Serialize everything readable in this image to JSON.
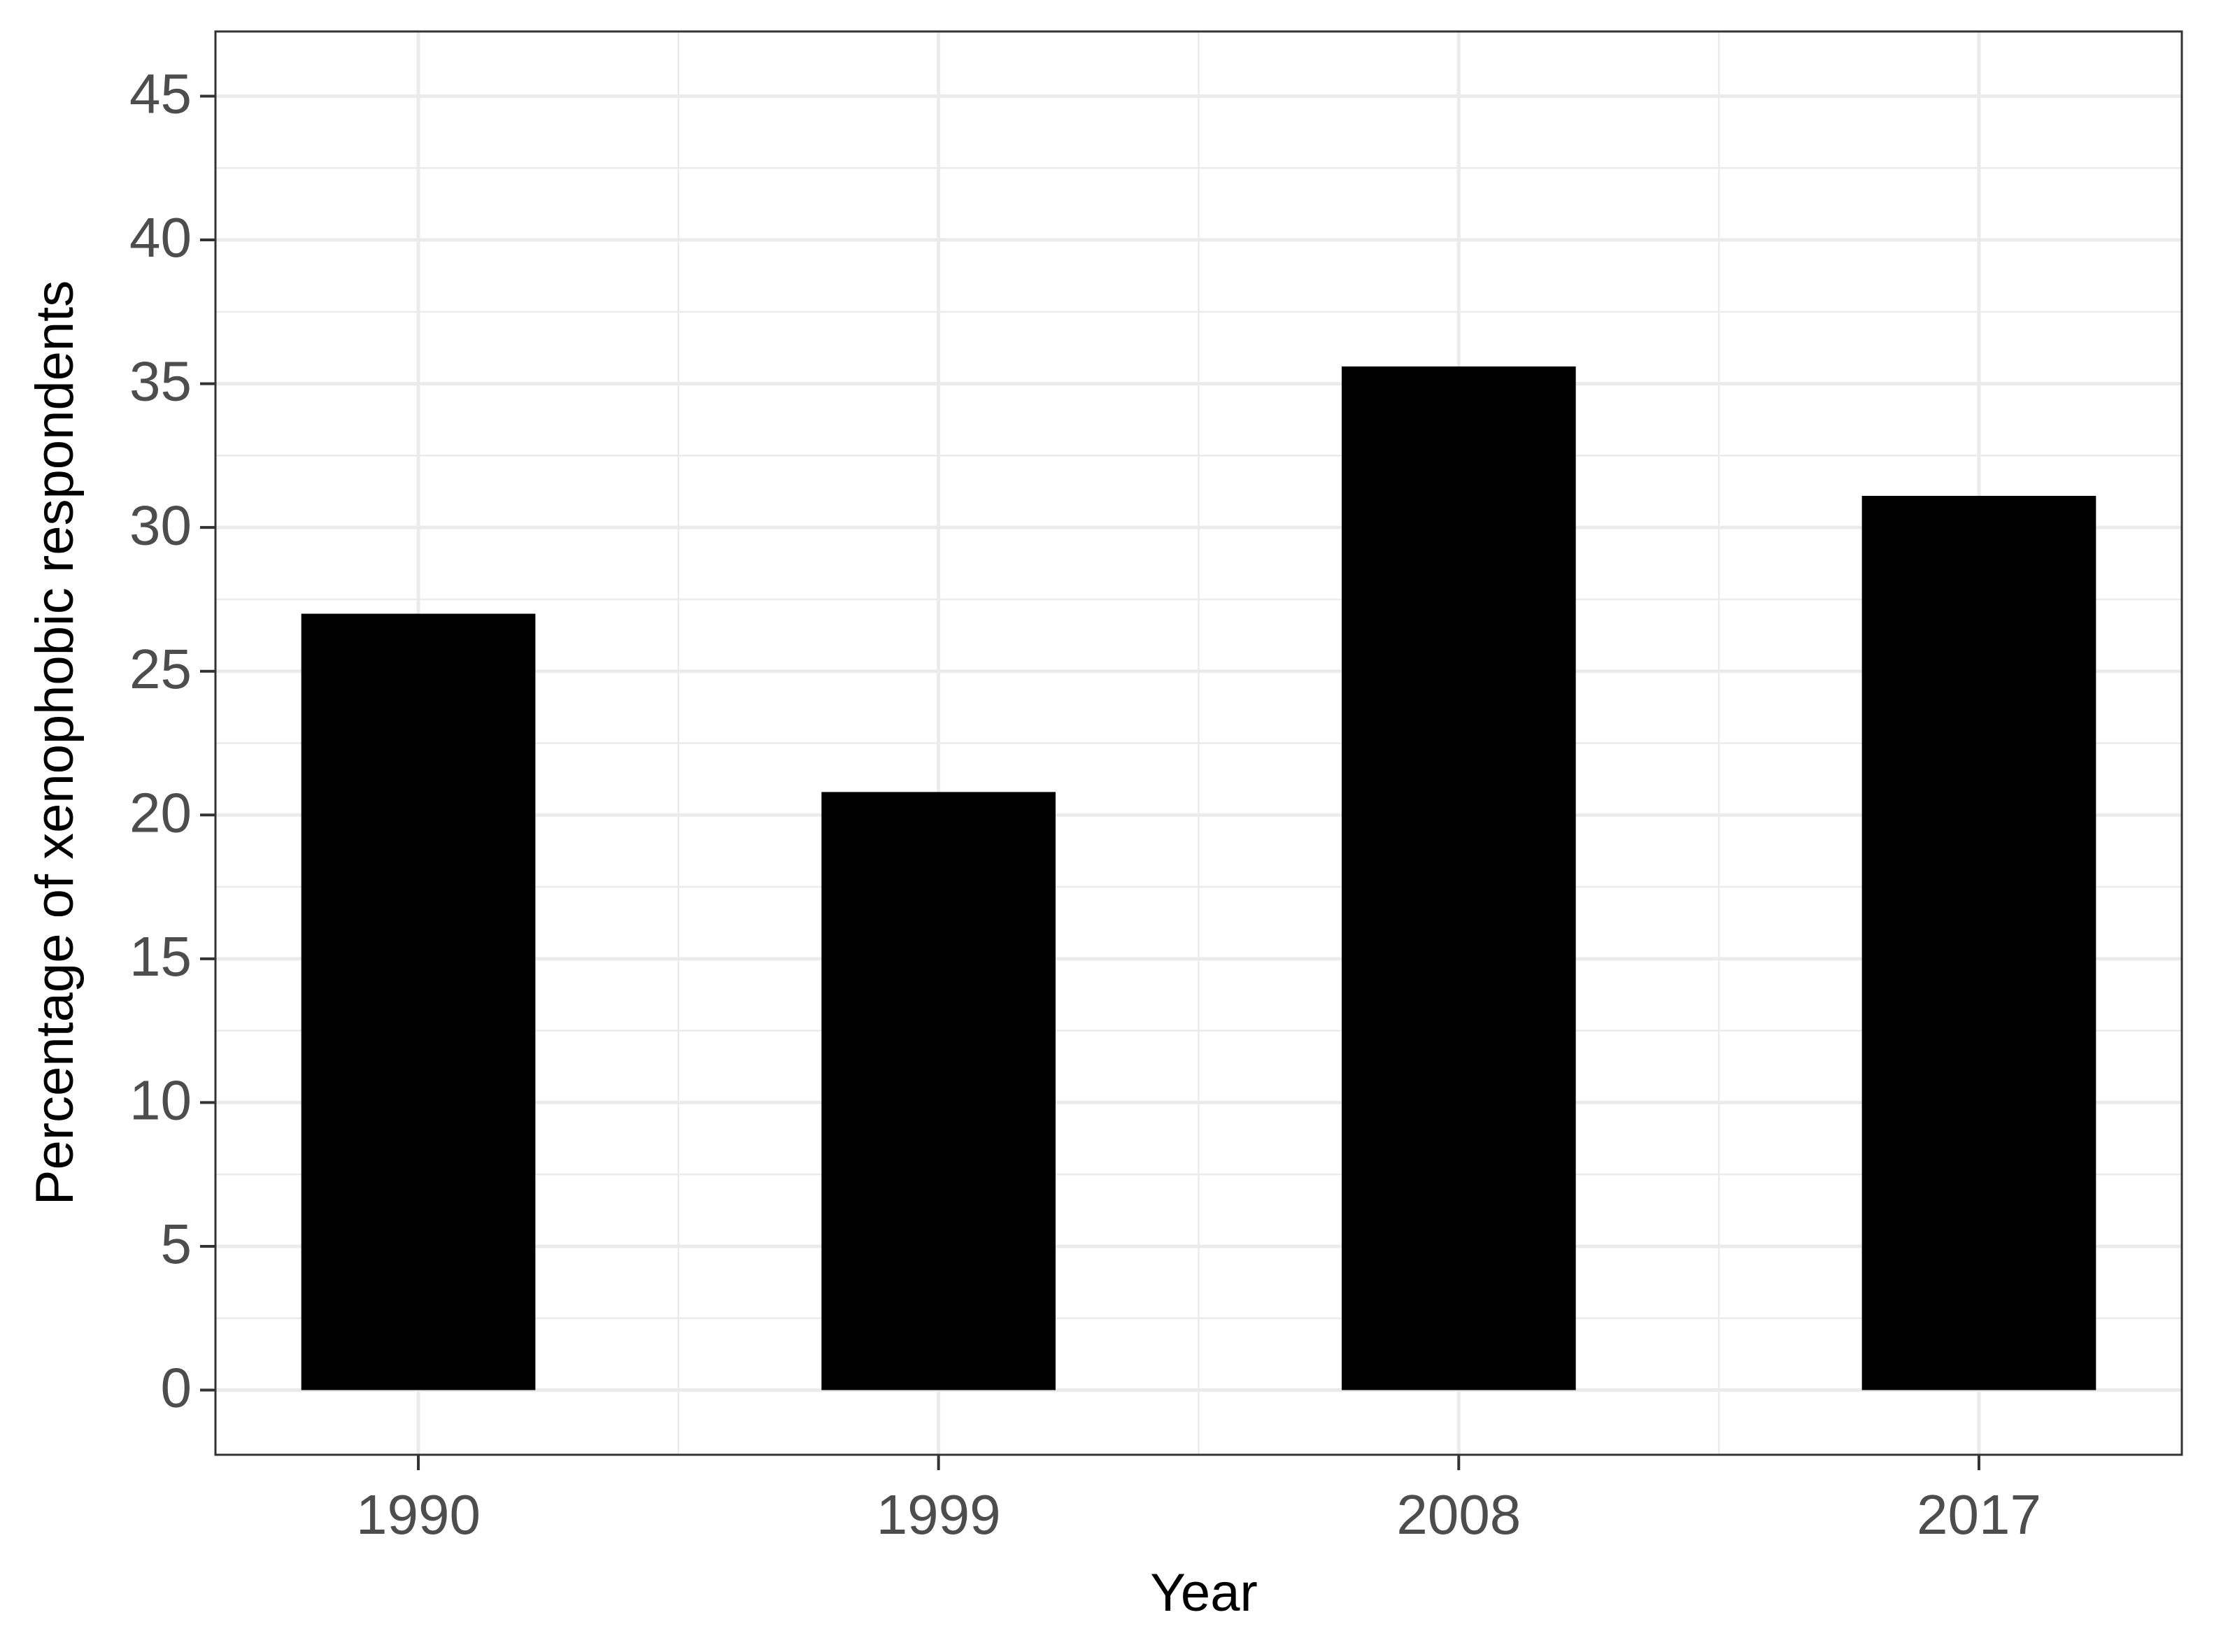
{
  "chart_data": {
    "type": "bar",
    "x_label": "Year",
    "y_label": "Percentage of xenophobic respondents",
    "categories": [
      "1990",
      "1999",
      "2008",
      "2017"
    ],
    "values": [
      27.0,
      20.8,
      35.6,
      31.1
    ],
    "color": "#000000",
    "ylim": [
      -2.25,
      47.25
    ],
    "yticks": [
      0,
      5,
      10,
      15,
      20,
      25,
      30,
      35,
      40,
      45
    ],
    "y_minor_ticks": [
      2.5,
      7.5,
      12.5,
      17.5,
      22.5,
      27.5,
      32.5,
      37.5,
      42.5
    ],
    "grid": true
  }
}
